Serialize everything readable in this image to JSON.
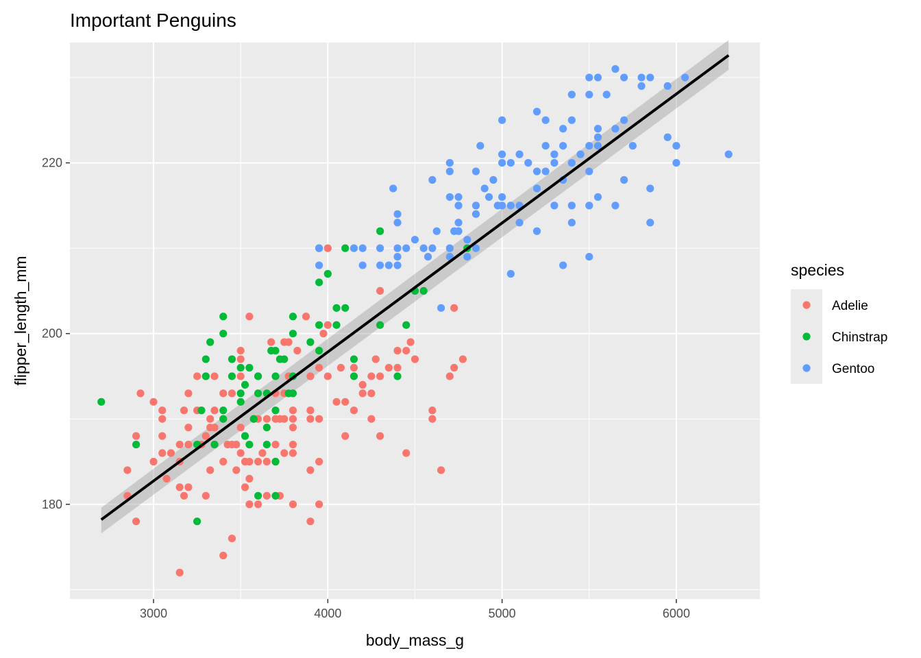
{
  "chart_data": {
    "type": "scatter",
    "title": "Important Penguins",
    "xlabel": "body_mass_g",
    "ylabel": "flipper_length_mm",
    "xlim": [
      2520,
      6480
    ],
    "ylim": [
      168.9,
      234.1
    ],
    "xticks": [
      3000,
      4000,
      5000,
      6000
    ],
    "yticks": [
      180,
      200,
      220
    ],
    "x_minor_gridlines": [
      2500,
      3500,
      4500,
      5500,
      6500
    ],
    "y_minor_gridlines": [
      170,
      190,
      210,
      230
    ],
    "grid": true,
    "panel_background": "#ebebeb",
    "legend": {
      "title": "species",
      "position": "right",
      "entries": [
        "Adelie",
        "Chinstrap",
        "Gentoo"
      ]
    },
    "colors": {
      "Adelie": "#F8766D",
      "Chinstrap": "#00BA38",
      "Gentoo": "#619CFF",
      "fit_line": "#000000",
      "confidence_band": "#999999"
    },
    "fit": {
      "method": "linear",
      "x": [
        2700,
        6300
      ],
      "y": [
        178.2,
        232.6
      ],
      "se_lower": [
        176.6,
        230.9
      ],
      "se_upper": [
        179.6,
        234.4
      ]
    },
    "series": [
      {
        "name": "Adelie",
        "points": [
          [
            2850,
            184
          ],
          [
            2850,
            181
          ],
          [
            2900,
            188
          ],
          [
            2900,
            178
          ],
          [
            2925,
            193
          ],
          [
            3000,
            185
          ],
          [
            3000,
            192
          ],
          [
            3050,
            191
          ],
          [
            3050,
            190
          ],
          [
            3050,
            188
          ],
          [
            3050,
            186
          ],
          [
            3075,
            183
          ],
          [
            3100,
            186
          ],
          [
            3150,
            187
          ],
          [
            3150,
            185
          ],
          [
            3150,
            182
          ],
          [
            3150,
            172
          ],
          [
            3175,
            191
          ],
          [
            3175,
            181
          ],
          [
            3200,
            193
          ],
          [
            3200,
            189
          ],
          [
            3200,
            187
          ],
          [
            3200,
            182
          ],
          [
            3250,
            195
          ],
          [
            3250,
            191
          ],
          [
            3275,
            187
          ],
          [
            3300,
            195
          ],
          [
            3300,
            188
          ],
          [
            3300,
            181
          ],
          [
            3325,
            190
          ],
          [
            3325,
            189
          ],
          [
            3325,
            184
          ],
          [
            3350,
            195
          ],
          [
            3350,
            191
          ],
          [
            3350,
            187
          ],
          [
            3350,
            189
          ],
          [
            3400,
            193
          ],
          [
            3400,
            190
          ],
          [
            3400,
            185
          ],
          [
            3400,
            174
          ],
          [
            3425,
            187
          ],
          [
            3450,
            193
          ],
          [
            3450,
            187
          ],
          [
            3450,
            176
          ],
          [
            3475,
            187
          ],
          [
            3475,
            184
          ],
          [
            3500,
            198
          ],
          [
            3500,
            197
          ],
          [
            3500,
            195
          ],
          [
            3500,
            189
          ],
          [
            3500,
            186
          ],
          [
            3525,
            185
          ],
          [
            3525,
            182
          ],
          [
            3550,
            202
          ],
          [
            3550,
            185
          ],
          [
            3550,
            183
          ],
          [
            3550,
            180
          ],
          [
            3575,
            190
          ],
          [
            3600,
            195
          ],
          [
            3600,
            190
          ],
          [
            3600,
            185
          ],
          [
            3600,
            180
          ],
          [
            3625,
            186
          ],
          [
            3650,
            190
          ],
          [
            3650,
            185
          ],
          [
            3650,
            181
          ],
          [
            3675,
            199
          ],
          [
            3700,
            193
          ],
          [
            3700,
            190
          ],
          [
            3700,
            187
          ],
          [
            3700,
            185
          ],
          [
            3725,
            190
          ],
          [
            3725,
            181
          ],
          [
            3750,
            199
          ],
          [
            3750,
            193
          ],
          [
            3750,
            190
          ],
          [
            3750,
            186
          ],
          [
            3775,
            199
          ],
          [
            3775,
            195
          ],
          [
            3800,
            191
          ],
          [
            3800,
            190
          ],
          [
            3800,
            189
          ],
          [
            3800,
            187
          ],
          [
            3800,
            186
          ],
          [
            3800,
            180
          ],
          [
            3825,
            198
          ],
          [
            3875,
            202
          ],
          [
            3900,
            195
          ],
          [
            3900,
            191
          ],
          [
            3900,
            190
          ],
          [
            3900,
            184
          ],
          [
            3900,
            178
          ],
          [
            3950,
            196
          ],
          [
            3950,
            190
          ],
          [
            3950,
            185
          ],
          [
            3950,
            180
          ],
          [
            3975,
            200
          ],
          [
            4000,
            201
          ],
          [
            4000,
            210
          ],
          [
            4000,
            195
          ],
          [
            4050,
            192
          ],
          [
            4075,
            196
          ],
          [
            4100,
            192
          ],
          [
            4100,
            188
          ],
          [
            4150,
            196
          ],
          [
            4150,
            191
          ],
          [
            4200,
            194
          ],
          [
            4200,
            193
          ],
          [
            4250,
            195
          ],
          [
            4250,
            193
          ],
          [
            4250,
            190
          ],
          [
            4275,
            197
          ],
          [
            4300,
            205
          ],
          [
            4300,
            195
          ],
          [
            4300,
            188
          ],
          [
            4350,
            196
          ],
          [
            4400,
            198
          ],
          [
            4400,
            196
          ],
          [
            4450,
            198
          ],
          [
            4450,
            186
          ],
          [
            4475,
            199
          ],
          [
            4500,
            197
          ],
          [
            4600,
            191
          ],
          [
            4600,
            190
          ],
          [
            4650,
            184
          ],
          [
            4700,
            195
          ],
          [
            4725,
            196
          ],
          [
            4725,
            203
          ],
          [
            4775,
            197
          ]
        ]
      },
      {
        "name": "Chinstrap",
        "points": [
          [
            2700,
            192
          ],
          [
            2900,
            187
          ],
          [
            3250,
            178
          ],
          [
            3250,
            187
          ],
          [
            3275,
            191
          ],
          [
            3300,
            197
          ],
          [
            3300,
            195
          ],
          [
            3325,
            199
          ],
          [
            3350,
            187
          ],
          [
            3400,
            202
          ],
          [
            3400,
            200
          ],
          [
            3400,
            191
          ],
          [
            3400,
            190
          ],
          [
            3450,
            197
          ],
          [
            3450,
            195
          ],
          [
            3500,
            196
          ],
          [
            3500,
            193
          ],
          [
            3500,
            192
          ],
          [
            3525,
            188
          ],
          [
            3525,
            194
          ],
          [
            3550,
            196
          ],
          [
            3550,
            187
          ],
          [
            3575,
            190
          ],
          [
            3600,
            195
          ],
          [
            3600,
            193
          ],
          [
            3600,
            181
          ],
          [
            3650,
            193
          ],
          [
            3650,
            189
          ],
          [
            3650,
            187
          ],
          [
            3675,
            198
          ],
          [
            3700,
            198
          ],
          [
            3700,
            195
          ],
          [
            3700,
            191
          ],
          [
            3700,
            185
          ],
          [
            3700,
            181
          ],
          [
            3725,
            197
          ],
          [
            3750,
            197
          ],
          [
            3775,
            193
          ],
          [
            3800,
            202
          ],
          [
            3800,
            200
          ],
          [
            3800,
            195
          ],
          [
            3800,
            193
          ],
          [
            3900,
            199
          ],
          [
            3950,
            210
          ],
          [
            3950,
            206
          ],
          [
            3950,
            201
          ],
          [
            3950,
            198
          ],
          [
            4000,
            207
          ],
          [
            4050,
            203
          ],
          [
            4050,
            201
          ],
          [
            4100,
            210
          ],
          [
            4100,
            203
          ],
          [
            4150,
            197
          ],
          [
            4150,
            195
          ],
          [
            4300,
            212
          ],
          [
            4300,
            201
          ],
          [
            4400,
            195
          ],
          [
            4450,
            201
          ],
          [
            4500,
            205
          ],
          [
            4550,
            205
          ],
          [
            4800,
            210
          ]
        ]
      },
      {
        "name": "Gentoo",
        "points": [
          [
            3950,
            210
          ],
          [
            3950,
            208
          ],
          [
            4150,
            210
          ],
          [
            4200,
            210
          ],
          [
            4200,
            208
          ],
          [
            4300,
            210
          ],
          [
            4300,
            208
          ],
          [
            4350,
            208
          ],
          [
            4375,
            217
          ],
          [
            4400,
            214
          ],
          [
            4400,
            213
          ],
          [
            4400,
            210
          ],
          [
            4400,
            209
          ],
          [
            4400,
            208
          ],
          [
            4450,
            210
          ],
          [
            4500,
            211
          ],
          [
            4550,
            210
          ],
          [
            4575,
            209
          ],
          [
            4600,
            218
          ],
          [
            4600,
            210
          ],
          [
            4625,
            212
          ],
          [
            4650,
            203
          ],
          [
            4700,
            220
          ],
          [
            4700,
            219
          ],
          [
            4700,
            216
          ],
          [
            4700,
            210
          ],
          [
            4700,
            209
          ],
          [
            4725,
            212
          ],
          [
            4750,
            216
          ],
          [
            4750,
            215
          ],
          [
            4750,
            213
          ],
          [
            4750,
            212
          ],
          [
            4800,
            211
          ],
          [
            4800,
            209
          ],
          [
            4850,
            219
          ],
          [
            4850,
            215
          ],
          [
            4850,
            214
          ],
          [
            4850,
            210
          ],
          [
            4875,
            222
          ],
          [
            4900,
            217
          ],
          [
            4925,
            216
          ],
          [
            4950,
            218
          ],
          [
            4975,
            215
          ],
          [
            5000,
            225
          ],
          [
            5000,
            221
          ],
          [
            5000,
            220
          ],
          [
            5000,
            216
          ],
          [
            5000,
            215
          ],
          [
            5050,
            220
          ],
          [
            5050,
            215
          ],
          [
            5050,
            207
          ],
          [
            5100,
            221
          ],
          [
            5100,
            215
          ],
          [
            5100,
            213
          ],
          [
            5150,
            220
          ],
          [
            5200,
            226
          ],
          [
            5200,
            219
          ],
          [
            5200,
            217
          ],
          [
            5200,
            212
          ],
          [
            5250,
            225
          ],
          [
            5250,
            222
          ],
          [
            5250,
            219
          ],
          [
            5300,
            221
          ],
          [
            5300,
            220
          ],
          [
            5300,
            215
          ],
          [
            5350,
            224
          ],
          [
            5350,
            222
          ],
          [
            5350,
            218
          ],
          [
            5350,
            208
          ],
          [
            5400,
            228
          ],
          [
            5400,
            225
          ],
          [
            5400,
            220
          ],
          [
            5400,
            215
          ],
          [
            5400,
            213
          ],
          [
            5450,
            221
          ],
          [
            5500,
            230
          ],
          [
            5500,
            228
          ],
          [
            5500,
            222
          ],
          [
            5500,
            219
          ],
          [
            5500,
            215
          ],
          [
            5500,
            209
          ],
          [
            5550,
            230
          ],
          [
            5550,
            224
          ],
          [
            5550,
            223
          ],
          [
            5550,
            222
          ],
          [
            5550,
            216
          ],
          [
            5600,
            228
          ],
          [
            5650,
            231
          ],
          [
            5650,
            224
          ],
          [
            5650,
            215
          ],
          [
            5700,
            230
          ],
          [
            5700,
            225
          ],
          [
            5700,
            218
          ],
          [
            5750,
            222
          ],
          [
            5800,
            230
          ],
          [
            5800,
            229
          ],
          [
            5850,
            230
          ],
          [
            5850,
            217
          ],
          [
            5850,
            213
          ],
          [
            5950,
            229
          ],
          [
            5950,
            223
          ],
          [
            6000,
            222
          ],
          [
            6000,
            220
          ],
          [
            6050,
            230
          ],
          [
            6300,
            221
          ]
        ]
      }
    ]
  }
}
